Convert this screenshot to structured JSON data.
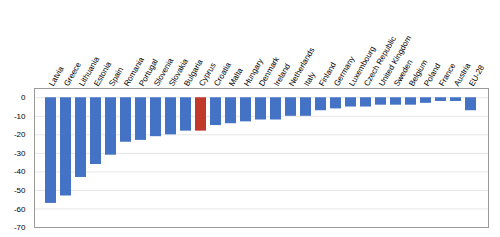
{
  "chart_data": {
    "type": "bar",
    "categories": [
      "Latvia",
      "Greece",
      "Lithuania",
      "Estonia",
      "Spain",
      "Romania",
      "Portugal",
      "Slovenia",
      "Slovakia",
      "Bulgaria",
      "Cyprus",
      "Croatia",
      "Malta",
      "Hungary",
      "Denmark",
      "Ireland",
      "Netherlands",
      "Italy",
      "Finland",
      "Germany",
      "Luxembourg",
      "Czech Republic",
      "United Kingdom",
      "Sweden",
      "Belgium",
      "Poland",
      "France",
      "Austria",
      "EU-28"
    ],
    "values": [
      -57,
      -53,
      -43,
      -36,
      -31,
      -24,
      -23,
      -21,
      -20,
      -18,
      -18,
      -15,
      -14,
      -13,
      -12,
      -12,
      -10,
      -10,
      -7,
      -6,
      -5,
      -5,
      -4,
      -4,
      -4,
      -3,
      -2,
      -2,
      -7
    ],
    "colors": [
      "#4472C4",
      "#4472C4",
      "#4472C4",
      "#4472C4",
      "#4472C4",
      "#4472C4",
      "#4472C4",
      "#4472C4",
      "#4472C4",
      "#4472C4",
      "#C0392B",
      "#4472C4",
      "#4472C4",
      "#4472C4",
      "#4472C4",
      "#4472C4",
      "#4472C4",
      "#4472C4",
      "#4472C4",
      "#4472C4",
      "#4472C4",
      "#4472C4",
      "#4472C4",
      "#4472C4",
      "#4472C4",
      "#4472C4",
      "#4472C4",
      "#4472C4",
      "#4472C4"
    ],
    "ylim": [
      -70,
      5
    ],
    "yticks": [
      0,
      -10,
      -20,
      -30,
      -40,
      -50,
      -60,
      -70
    ],
    "grid": true
  }
}
